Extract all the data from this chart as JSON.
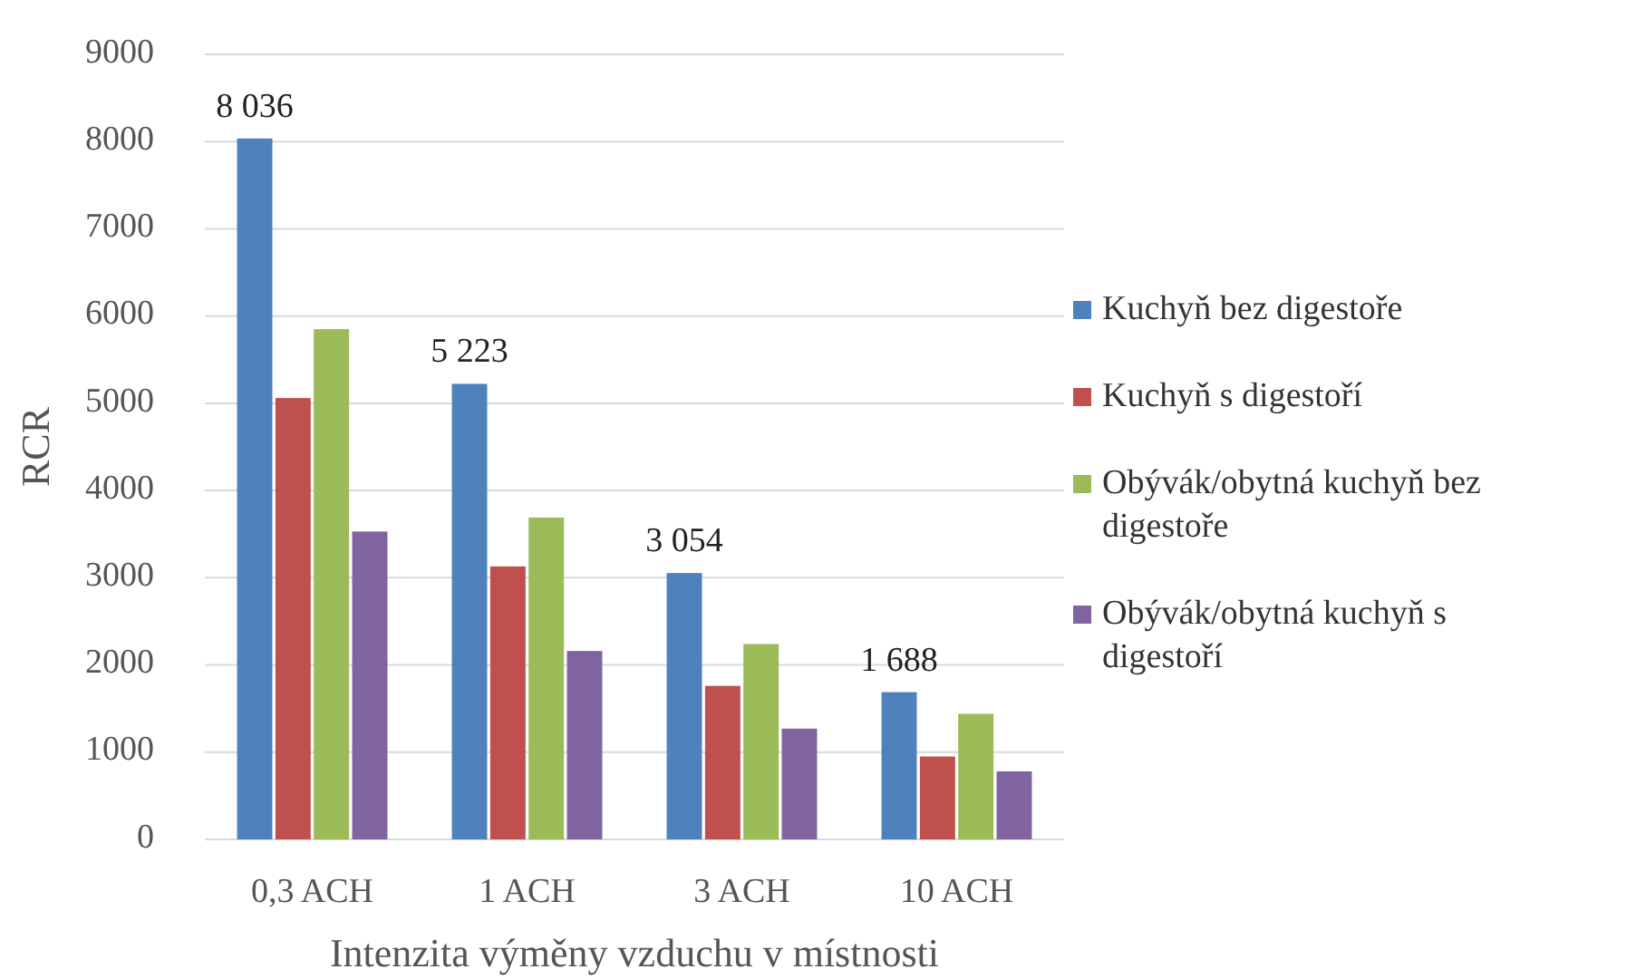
{
  "chart_data": {
    "type": "bar",
    "xlabel": "Intenzita výměny vzduchu v místnosti",
    "ylabel": "RCR",
    "categories": [
      "0,3 ACH",
      "1 ACH",
      "3 ACH",
      "10 ACH"
    ],
    "series": [
      {
        "name": "Kuchyň bez digestoře",
        "color": "#4f81bd",
        "values": [
          8036,
          5223,
          3054,
          1688
        ],
        "value_labels": [
          "8 036",
          "5 223",
          "3 054",
          "1 688"
        ]
      },
      {
        "name": "Kuchyň s digestoří",
        "color": "#c0504d",
        "values": [
          5060,
          3130,
          1760,
          950
        ]
      },
      {
        "name": "Obývák/obytná kuchyň bez digestoře",
        "color": "#9bbb59",
        "values": [
          5850,
          3690,
          2240,
          1440
        ]
      },
      {
        "name": "Obývák/obytná kuchyň s digestoří",
        "color": "#8064a2",
        "values": [
          3530,
          2160,
          1270,
          780
        ]
      }
    ],
    "ylim": [
      0,
      9000
    ],
    "yticks": [
      0,
      1000,
      2000,
      3000,
      4000,
      5000,
      6000,
      7000,
      8000,
      9000
    ],
    "grid": "y",
    "legend": "right"
  }
}
